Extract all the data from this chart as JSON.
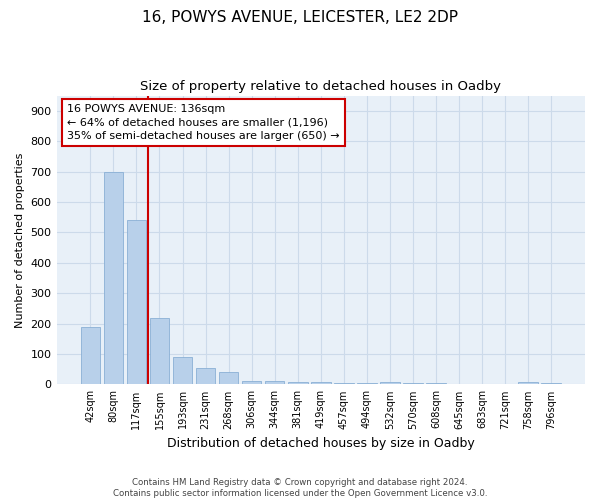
{
  "title1": "16, POWYS AVENUE, LEICESTER, LE2 2DP",
  "title2": "Size of property relative to detached houses in Oadby",
  "xlabel": "Distribution of detached houses by size in Oadby",
  "ylabel": "Number of detached properties",
  "categories": [
    "42sqm",
    "80sqm",
    "117sqm",
    "155sqm",
    "193sqm",
    "231sqm",
    "268sqm",
    "306sqm",
    "344sqm",
    "381sqm",
    "419sqm",
    "457sqm",
    "494sqm",
    "532sqm",
    "570sqm",
    "608sqm",
    "645sqm",
    "683sqm",
    "721sqm",
    "758sqm",
    "796sqm"
  ],
  "values": [
    190,
    700,
    540,
    220,
    90,
    55,
    40,
    12,
    12,
    8,
    8,
    5,
    5,
    8,
    5,
    5,
    0,
    0,
    0,
    8,
    5
  ],
  "bar_color": "#b8d0ea",
  "bar_edge_color": "#8ab0d5",
  "grid_color": "#ccdaea",
  "background_color": "#e8f0f8",
  "vline_color": "#cc0000",
  "annotation_text": "16 POWYS AVENUE: 136sqm\n← 64% of detached houses are smaller (1,196)\n35% of semi-detached houses are larger (650) →",
  "annotation_box_color": "#ffffff",
  "annotation_box_edge": "#cc0000",
  "ylim": [
    0,
    950
  ],
  "yticks": [
    0,
    100,
    200,
    300,
    400,
    500,
    600,
    700,
    800,
    900
  ],
  "footer1": "Contains HM Land Registry data © Crown copyright and database right 2024.",
  "footer2": "Contains public sector information licensed under the Open Government Licence v3.0."
}
